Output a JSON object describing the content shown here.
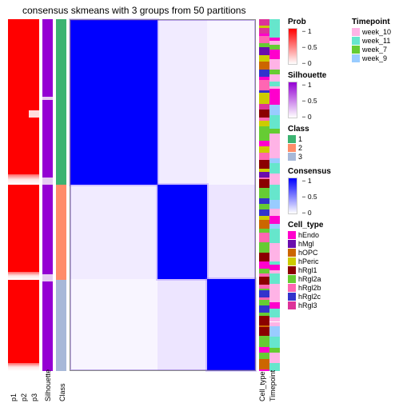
{
  "title": "consensus skmeans with 3 groups from 50 partitions",
  "layout": {
    "group_heights_pct": [
      47,
      27,
      26
    ],
    "anno_col_width": 13,
    "matrix_border": "#888888"
  },
  "left_annotations": [
    {
      "name": "p1",
      "type": "prob",
      "palette": "prob"
    },
    {
      "name": "p2",
      "type": "prob",
      "palette": "prob"
    },
    {
      "name": "p3",
      "type": "prob",
      "palette": "prob"
    },
    {
      "name": "Silhouette",
      "type": "sil",
      "palette": "silhouette"
    },
    {
      "name": "Class",
      "type": "class",
      "palette": "class"
    }
  ],
  "right_annotations": [
    {
      "name": "Cell_type",
      "type": "celltype",
      "palette": "cell_type"
    },
    {
      "name": "Timepoint",
      "type": "timepoint",
      "palette": "timepoint"
    }
  ],
  "legends": {
    "prob": {
      "title": "Prob",
      "type": "gradient",
      "stops": [
        "#ffffff",
        "#ff0000"
      ],
      "ticks": [
        {
          "v": "1",
          "p": 0
        },
        {
          "v": "0.5",
          "p": 50
        },
        {
          "v": "0",
          "p": 100
        }
      ]
    },
    "silhouette": {
      "title": "Silhouette",
      "type": "gradient",
      "stops": [
        "#ffffff",
        "#9400d3"
      ],
      "ticks": [
        {
          "v": "1",
          "p": 0
        },
        {
          "v": "0.5",
          "p": 50
        },
        {
          "v": "0",
          "p": 100
        }
      ]
    },
    "class": {
      "title": "Class",
      "type": "discrete",
      "items": [
        {
          "label": "1",
          "color": "#3cb371"
        },
        {
          "label": "2",
          "color": "#ff8c69"
        },
        {
          "label": "3",
          "color": "#a7b8d8"
        }
      ]
    },
    "consensus": {
      "title": "Consensus",
      "type": "gradient",
      "stops": [
        "#ffffff",
        "#0000ff"
      ],
      "ticks": [
        {
          "v": "1",
          "p": 0
        },
        {
          "v": "0.5",
          "p": 50
        },
        {
          "v": "0",
          "p": 100
        }
      ]
    },
    "cell_type": {
      "title": "Cell_type",
      "type": "discrete",
      "items": [
        {
          "label": "hEndo",
          "color": "#ff00cc"
        },
        {
          "label": "hMgl",
          "color": "#6a0dad"
        },
        {
          "label": "hOPC",
          "color": "#cc6600"
        },
        {
          "label": "hPeric",
          "color": "#cccc00"
        },
        {
          "label": "hRgl1",
          "color": "#8b0000"
        },
        {
          "label": "hRgl2a",
          "color": "#66cc33"
        },
        {
          "label": "hRgl2b",
          "color": "#ff66b3"
        },
        {
          "label": "hRgl2c",
          "color": "#3333cc"
        },
        {
          "label": "hRgl3",
          "color": "#dd3399"
        }
      ]
    },
    "timepoint": {
      "title": "Timepoint",
      "type": "discrete",
      "items": [
        {
          "label": "week_10",
          "color": "#ffb3e6"
        },
        {
          "label": "week_11",
          "color": "#66e6cc"
        },
        {
          "label": "week_7",
          "color": "#66cc33"
        },
        {
          "label": "week_9",
          "color": "#99ccff"
        }
      ]
    }
  },
  "class_colors": [
    "#3cb371",
    "#ff8c69",
    "#a7b8d8"
  ],
  "prob_colors": {
    "high": "#ff0000",
    "mid": "#ffcccc",
    "low": "#ffffff"
  },
  "sil_color": "#9400d3",
  "consensus_color": "#0000ff",
  "fontsize": {
    "title": 12,
    "legend_title": 10,
    "legend_item": 9,
    "axis": 9
  }
}
